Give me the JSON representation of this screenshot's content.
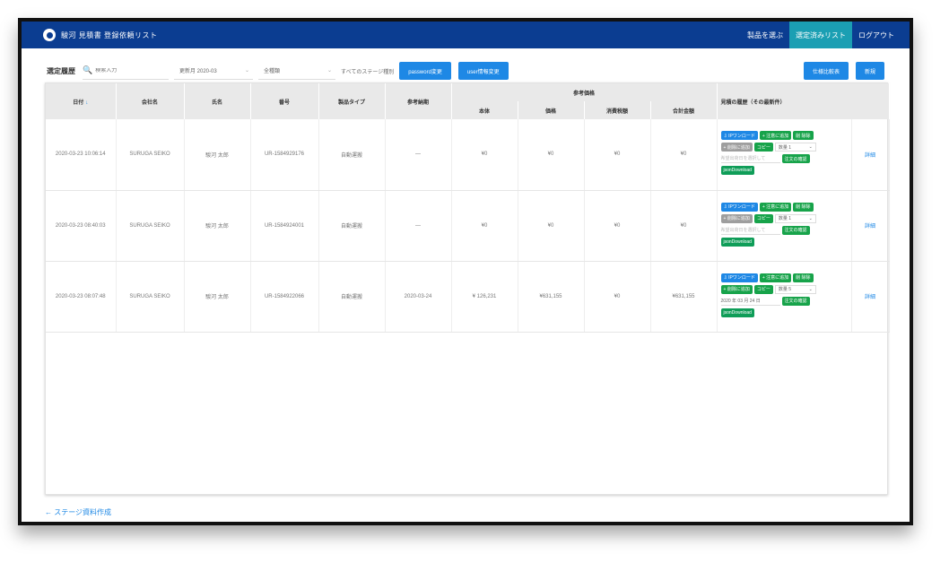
{
  "navbar": {
    "brand": "駿河 見積書 登録依頼リスト",
    "links": [
      "製品を選ぶ",
      "選定済みリスト",
      "ログアウト"
    ]
  },
  "toolbar": {
    "title": "選定履歴",
    "search_placeholder": "検索入力",
    "month_select": "更新月 2020-03",
    "type_select": "全種類",
    "stage_label": "すべてのステージ種別",
    "password_btn": "password変更",
    "user_btn": "user情報変更",
    "compare_btn": "仕様比較表",
    "new_btn": "新規"
  },
  "table": {
    "headers": {
      "date": "日付",
      "company": "会社名",
      "name": "氏名",
      "number": "番号",
      "product_type": "製品タイプ",
      "ref_date": "参考納期",
      "ref_price": "参考価格",
      "history": "見積の履歴（その最新件）"
    },
    "subheaders": [
      "本体",
      "価格",
      "消費税額",
      "合計金額"
    ],
    "rows": [
      {
        "date": "2020-03-23 10:06:14",
        "company": "SURUGA SEIKO",
        "name": "駿河 太郎",
        "number": "UR-1584929176",
        "product_type": "自動運搬",
        "ref_date": "—",
        "body": "¥0",
        "price": "¥0",
        "tax": "¥0",
        "total": "¥0",
        "qty": "数量 1",
        "input_text": "希望出荷日を選択して",
        "detail": "詳細"
      },
      {
        "date": "2020-03-23 08:40:03",
        "company": "SURUGA SEIKO",
        "name": "駿河 太郎",
        "number": "UR-1584924001",
        "product_type": "自動運搬",
        "ref_date": "—",
        "body": "¥0",
        "price": "¥0",
        "tax": "¥0",
        "total": "¥0",
        "qty": "数量 1",
        "input_text": "希望出荷日を選択して",
        "detail": "詳細"
      },
      {
        "date": "2020-03-23 08:07:48",
        "company": "SURUGA SEIKO",
        "name": "駿河 太郎",
        "number": "UR-1584922066",
        "product_type": "自動運搬",
        "ref_date": "2020-03-24",
        "body": "¥ 126,231",
        "price": "¥631,155",
        "tax": "¥0",
        "total": "¥631,155",
        "qty": "数量 5",
        "input_text": "2020 年 03 月 24 日",
        "detail": "詳細"
      }
    ],
    "actions": {
      "download": "⇩ IPワンロード",
      "add_order": "+ 注意に追加",
      "delete": "削 除除",
      "add_stock": "+ 削除に追加",
      "copy": "コピー",
      "confirm": "注文の確認",
      "json": "jsonDownload"
    }
  },
  "footer": {
    "link": "← ステージ資料作成"
  }
}
